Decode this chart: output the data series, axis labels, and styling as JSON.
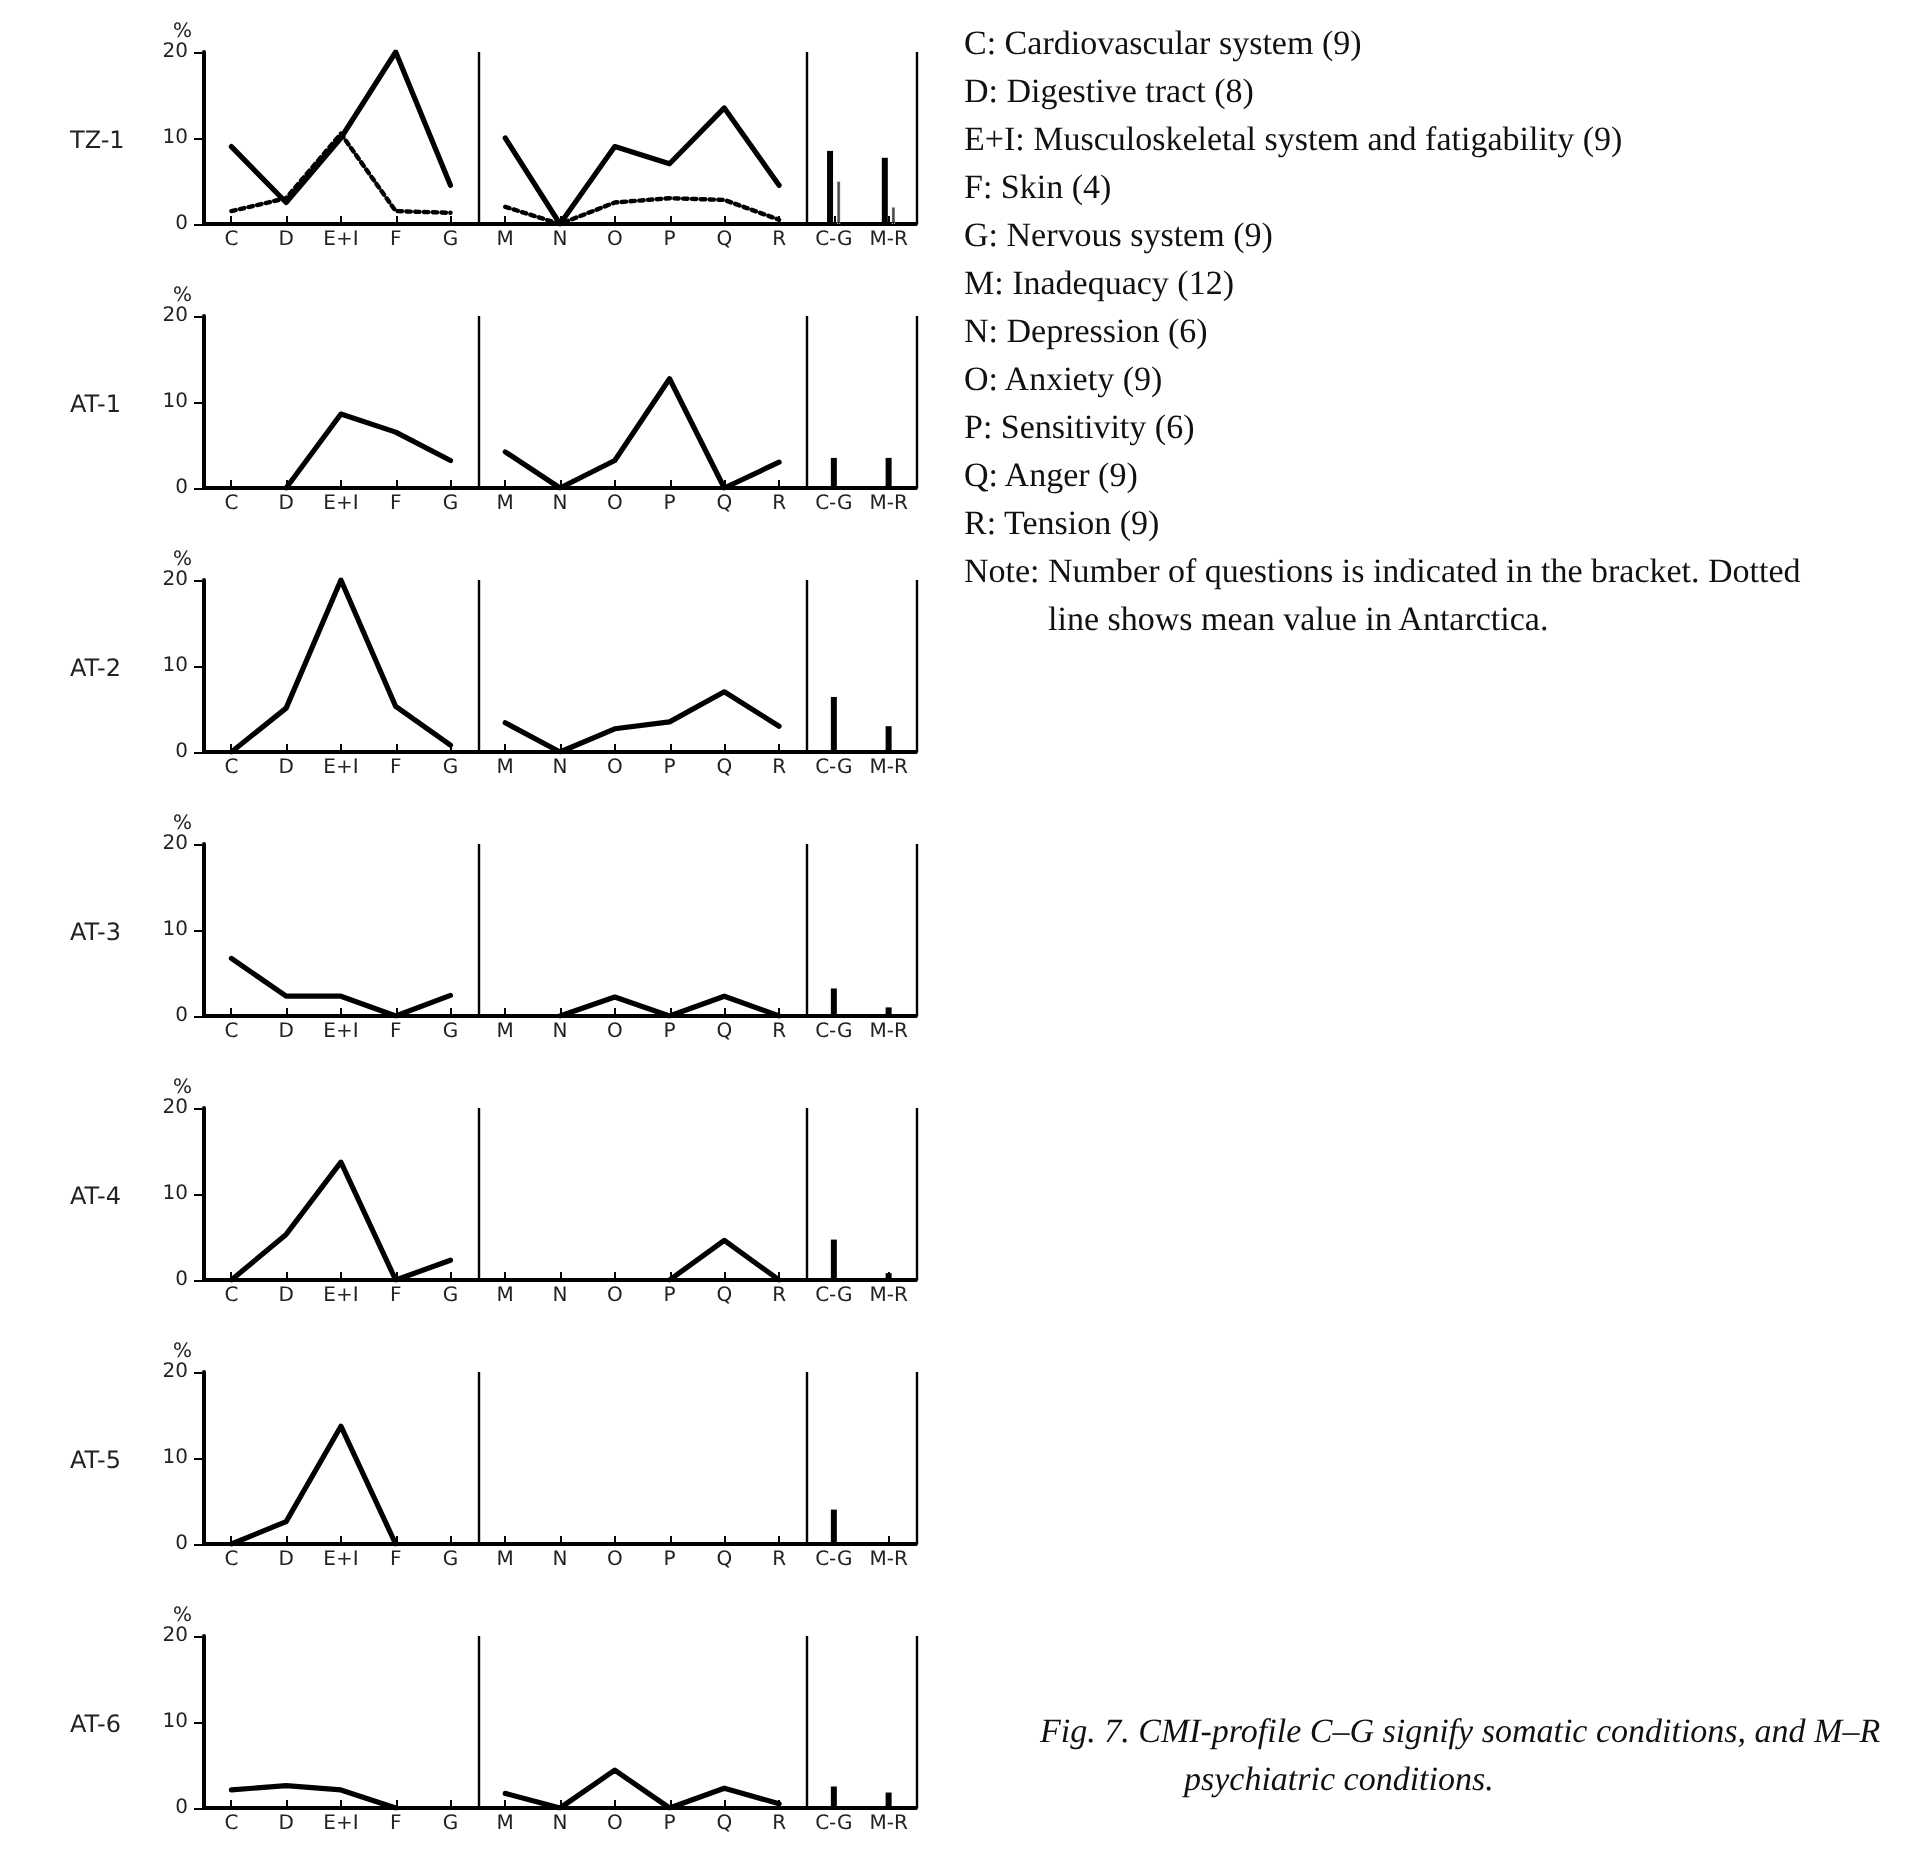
{
  "chart_data": [
    {
      "type": "line",
      "title": "TZ-1",
      "ylabel": "%",
      "categories": [
        "C",
        "D",
        "E+I",
        "F",
        "G",
        "M",
        "N",
        "O",
        "P",
        "Q",
        "R",
        "C-G",
        "M-R"
      ],
      "ylim": [
        0,
        20
      ],
      "yticks": [
        0,
        10,
        20
      ],
      "marker": "none",
      "series": [
        {
          "color": "#000000",
          "line_style": "solid",
          "x": [
            "C",
            "D",
            "E+I",
            "F",
            "G"
          ],
          "values": [
            9,
            2.5,
            10,
            20,
            4.5
          ]
        },
        {
          "color": "#000000",
          "line_style": "dotted",
          "x": [
            "C",
            "D",
            "E+I",
            "F",
            "G"
          ],
          "values": [
            1.5,
            3,
            10.5,
            1.5,
            1.3
          ]
        },
        {
          "color": "#000000",
          "line_style": "solid",
          "x": [
            "M",
            "N",
            "O",
            "P",
            "Q",
            "R"
          ],
          "values": [
            10,
            0,
            9,
            7,
            13.5,
            4.5
          ]
        },
        {
          "color": "#000000",
          "line_style": "dotted",
          "x": [
            "M",
            "N",
            "O",
            "P",
            "Q",
            "R"
          ],
          "values": [
            2,
            0,
            2.5,
            3,
            2.8,
            0.5
          ]
        },
        {
          "type": "bar",
          "color": "#000000",
          "line_style": "solid",
          "x": [
            "C-G",
            "M-R"
          ],
          "values": [
            8.5,
            7.7
          ]
        },
        {
          "type": "bar",
          "color": "#000000",
          "line_style": "dotted",
          "x": [
            "C-G",
            "M-R"
          ],
          "values": [
            5,
            2
          ]
        }
      ],
      "annotations": [
        "C: Cardiovascular system (9)",
        "D: Digestive tract (8)",
        "E+I: Musculoskeletal system and fatigability (9)",
        "F: Skin (4)",
        "G: Nervous system (9)",
        "M: Inadequacy (12)",
        "N: Depression (6)",
        "O: Anxiety (9)",
        "P: Sensitivity (6)",
        "Q: Anger (9)",
        "R: Tension (9)",
        "Note: Number of questions is indicated in the bracket. Dotted line shows mean value in Antarctica."
      ]
    },
    {
      "type": "line",
      "title": "AT-1",
      "ylabel": "%",
      "categories": [
        "C",
        "D",
        "E+I",
        "F",
        "G",
        "M",
        "N",
        "O",
        "P",
        "Q",
        "R",
        "C-G",
        "M-R"
      ],
      "ylim": [
        0,
        20
      ],
      "yticks": [
        0,
        10,
        20
      ],
      "marker": "none",
      "series": [
        {
          "color": "#000000",
          "line_style": "solid",
          "x": [
            "C",
            "D",
            "E+I",
            "F",
            "G"
          ],
          "values": [
            null,
            0,
            8.6,
            6.5,
            3.2
          ]
        },
        {
          "color": "#000000",
          "line_style": "solid",
          "x": [
            "M",
            "N",
            "O",
            "P",
            "Q",
            "R"
          ],
          "values": [
            4.2,
            0,
            3.2,
            12.7,
            0,
            3
          ]
        },
        {
          "type": "bar",
          "color": "#000000",
          "line_style": "solid",
          "x": [
            "C-G",
            "M-R"
          ],
          "values": [
            3.5,
            3.5
          ]
        }
      ]
    },
    {
      "type": "line",
      "title": "AT-2",
      "ylabel": "%",
      "categories": [
        "C",
        "D",
        "E+I",
        "F",
        "G",
        "M",
        "N",
        "O",
        "P",
        "Q",
        "R",
        "C-G",
        "M-R"
      ],
      "ylim": [
        0,
        20
      ],
      "yticks": [
        0,
        10,
        20
      ],
      "marker": "none",
      "series": [
        {
          "color": "#000000",
          "line_style": "solid",
          "x": [
            "C",
            "D",
            "E+I",
            "F",
            "G"
          ],
          "values": [
            0,
            5.1,
            20,
            5.3,
            0.8
          ]
        },
        {
          "color": "#000000",
          "line_style": "solid",
          "x": [
            "M",
            "N",
            "O",
            "P",
            "Q",
            "R"
          ],
          "values": [
            3.4,
            0,
            2.7,
            3.5,
            7,
            3
          ]
        },
        {
          "type": "bar",
          "color": "#000000",
          "line_style": "solid",
          "x": [
            "C-G",
            "M-R"
          ],
          "values": [
            6.4,
            3
          ]
        }
      ]
    },
    {
      "type": "line",
      "title": "AT-3",
      "ylabel": "%",
      "categories": [
        "C",
        "D",
        "E+I",
        "F",
        "G",
        "M",
        "N",
        "O",
        "P",
        "Q",
        "R",
        "C-G",
        "M-R"
      ],
      "ylim": [
        0,
        20
      ],
      "yticks": [
        0,
        10,
        20
      ],
      "marker": "none",
      "series": [
        {
          "color": "#000000",
          "line_style": "solid",
          "x": [
            "C",
            "D",
            "E+I",
            "F",
            "G"
          ],
          "values": [
            6.7,
            2.3,
            2.3,
            0,
            2.4
          ]
        },
        {
          "color": "#000000",
          "line_style": "solid",
          "x": [
            "M",
            "N",
            "O",
            "P",
            "Q",
            "R"
          ],
          "values": [
            null,
            0,
            2.2,
            0,
            2.3,
            0
          ]
        },
        {
          "type": "bar",
          "color": "#000000",
          "line_style": "solid",
          "x": [
            "C-G",
            "M-R"
          ],
          "values": [
            3.2,
            1
          ]
        }
      ]
    },
    {
      "type": "line",
      "title": "AT-4",
      "ylabel": "%",
      "categories": [
        "C",
        "D",
        "E+I",
        "F",
        "G",
        "M",
        "N",
        "O",
        "P",
        "Q",
        "R",
        "C-G",
        "M-R"
      ],
      "ylim": [
        0,
        20
      ],
      "yticks": [
        0,
        10,
        20
      ],
      "marker": "none",
      "series": [
        {
          "color": "#000000",
          "line_style": "solid",
          "x": [
            "C",
            "D",
            "E+I",
            "F",
            "G"
          ],
          "values": [
            0,
            5.3,
            13.7,
            0,
            2.3
          ]
        },
        {
          "color": "#000000",
          "line_style": "solid",
          "x": [
            "M",
            "N",
            "O",
            "P",
            "Q",
            "R"
          ],
          "values": [
            null,
            null,
            null,
            0,
            4.6,
            0
          ]
        },
        {
          "type": "bar",
          "color": "#000000",
          "line_style": "solid",
          "x": [
            "C-G",
            "M-R"
          ],
          "values": [
            4.7,
            0.8
          ]
        }
      ]
    },
    {
      "type": "line",
      "title": "AT-5",
      "ylabel": "%",
      "categories": [
        "C",
        "D",
        "E+I",
        "F",
        "G",
        "M",
        "N",
        "O",
        "P",
        "Q",
        "R",
        "C-G",
        "M-R"
      ],
      "ylim": [
        0,
        20
      ],
      "yticks": [
        0,
        10,
        20
      ],
      "marker": "none",
      "series": [
        {
          "color": "#000000",
          "line_style": "solid",
          "x": [
            "C",
            "D",
            "E+I",
            "F",
            "G"
          ],
          "values": [
            0,
            2.6,
            13.7,
            0,
            null
          ]
        },
        {
          "color": "#000000",
          "line_style": "solid",
          "x": [
            "M",
            "N",
            "O",
            "P",
            "Q",
            "R"
          ],
          "values": [
            null,
            null,
            null,
            null,
            null,
            null
          ]
        },
        {
          "type": "bar",
          "color": "#000000",
          "line_style": "solid",
          "x": [
            "C-G",
            "M-R"
          ],
          "values": [
            4,
            null
          ]
        }
      ]
    },
    {
      "type": "line",
      "title": "AT-6",
      "ylabel": "%",
      "categories": [
        "C",
        "D",
        "E+I",
        "F",
        "G",
        "M",
        "N",
        "O",
        "P",
        "Q",
        "R",
        "C-G",
        "M-R"
      ],
      "ylim": [
        0,
        20
      ],
      "yticks": [
        0,
        10,
        20
      ],
      "marker": "none",
      "series": [
        {
          "color": "#000000",
          "line_style": "solid",
          "x": [
            "C",
            "D",
            "E+I",
            "F",
            "G"
          ],
          "values": [
            2.1,
            2.6,
            2.1,
            0,
            null
          ]
        },
        {
          "color": "#000000",
          "line_style": "solid",
          "x": [
            "M",
            "N",
            "O",
            "P",
            "Q",
            "R"
          ],
          "values": [
            1.7,
            0,
            4.4,
            0,
            2.3,
            0.5
          ]
        },
        {
          "type": "bar",
          "color": "#000000",
          "line_style": "solid",
          "x": [
            "C-G",
            "M-R"
          ],
          "values": [
            2.5,
            1.8
          ]
        }
      ],
      "annotations": [
        "Fig. 7. CMI-profile C–G signify somatic conditions, and M–R psychiatric conditions."
      ]
    }
  ]
}
